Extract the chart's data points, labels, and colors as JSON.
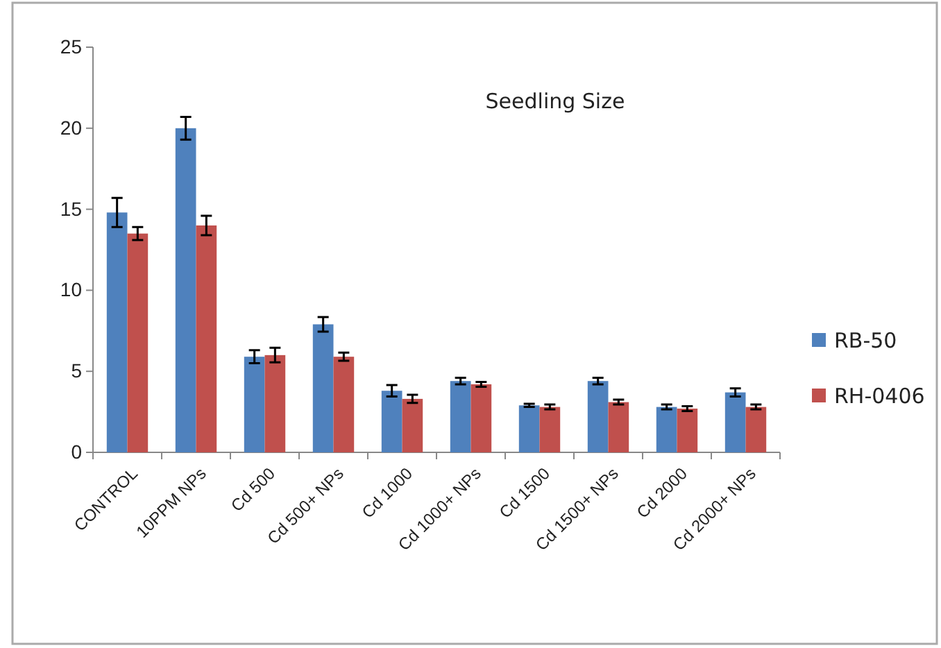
{
  "chart_data": {
    "type": "bar",
    "title": "Seedling Size",
    "categories": [
      "CONTROL",
      "10PPM NPs",
      "Cd 500",
      "Cd 500+ NPs",
      "Cd 1000",
      "Cd 1000+ NPs",
      "Cd 1500",
      "Cd 1500+ NPs",
      "Cd 2000",
      "Cd 2000+ NPs"
    ],
    "series": [
      {
        "name": "RB-50",
        "color": "#4f81bd",
        "values": [
          14.8,
          20.0,
          5.9,
          7.9,
          3.8,
          4.4,
          2.9,
          4.4,
          2.8,
          3.7
        ],
        "errors": [
          0.9,
          0.7,
          0.4,
          0.45,
          0.35,
          0.2,
          0.1,
          0.2,
          0.15,
          0.25
        ]
      },
      {
        "name": "RH-0406",
        "color": "#c0504d",
        "values": [
          13.5,
          14.0,
          6.0,
          5.9,
          3.3,
          4.2,
          2.8,
          3.1,
          2.7,
          2.8
        ],
        "errors": [
          0.4,
          0.6,
          0.45,
          0.25,
          0.25,
          0.15,
          0.15,
          0.15,
          0.15,
          0.15
        ]
      }
    ],
    "ylim": [
      0,
      25
    ],
    "yticks": [
      0,
      5,
      10,
      15,
      20,
      25
    ],
    "grid": false,
    "legend": "right"
  }
}
